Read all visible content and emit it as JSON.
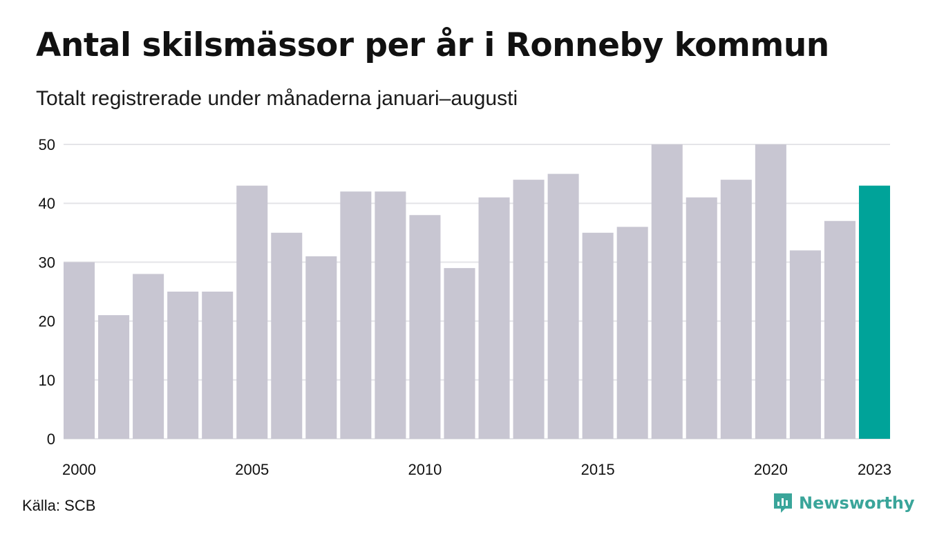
{
  "title": "Antal skilsmässor per år i Ronneby kommun",
  "subtitle": "Totalt registrerade under månaderna januari–augusti",
  "source": "Källa: SCB",
  "brand": {
    "name": "Newsworthy",
    "icon": "newsworthy-logo-icon"
  },
  "colors": {
    "bar": "#c8c6d2",
    "highlight": "#00a399",
    "grid": "#e4e4e8",
    "text": "#111111"
  },
  "chart_data": {
    "type": "bar",
    "categories": [
      "2000",
      "2001",
      "2002",
      "2003",
      "2004",
      "2005",
      "2006",
      "2007",
      "2008",
      "2009",
      "2010",
      "2011",
      "2012",
      "2013",
      "2014",
      "2015",
      "2016",
      "2017",
      "2018",
      "2019",
      "2020",
      "2021",
      "2022",
      "2023"
    ],
    "values": [
      30,
      21,
      28,
      25,
      25,
      43,
      35,
      31,
      42,
      42,
      38,
      29,
      41,
      44,
      45,
      35,
      36,
      50,
      41,
      44,
      50,
      32,
      37,
      43
    ],
    "highlight_category": "2023",
    "ylim": [
      0,
      50
    ],
    "yticks": [
      0,
      10,
      20,
      30,
      40,
      50
    ],
    "xtick_labels": [
      "2000",
      "2005",
      "2010",
      "2015",
      "2020",
      "2023"
    ],
    "grid": true,
    "xlabel": "",
    "ylabel": ""
  }
}
